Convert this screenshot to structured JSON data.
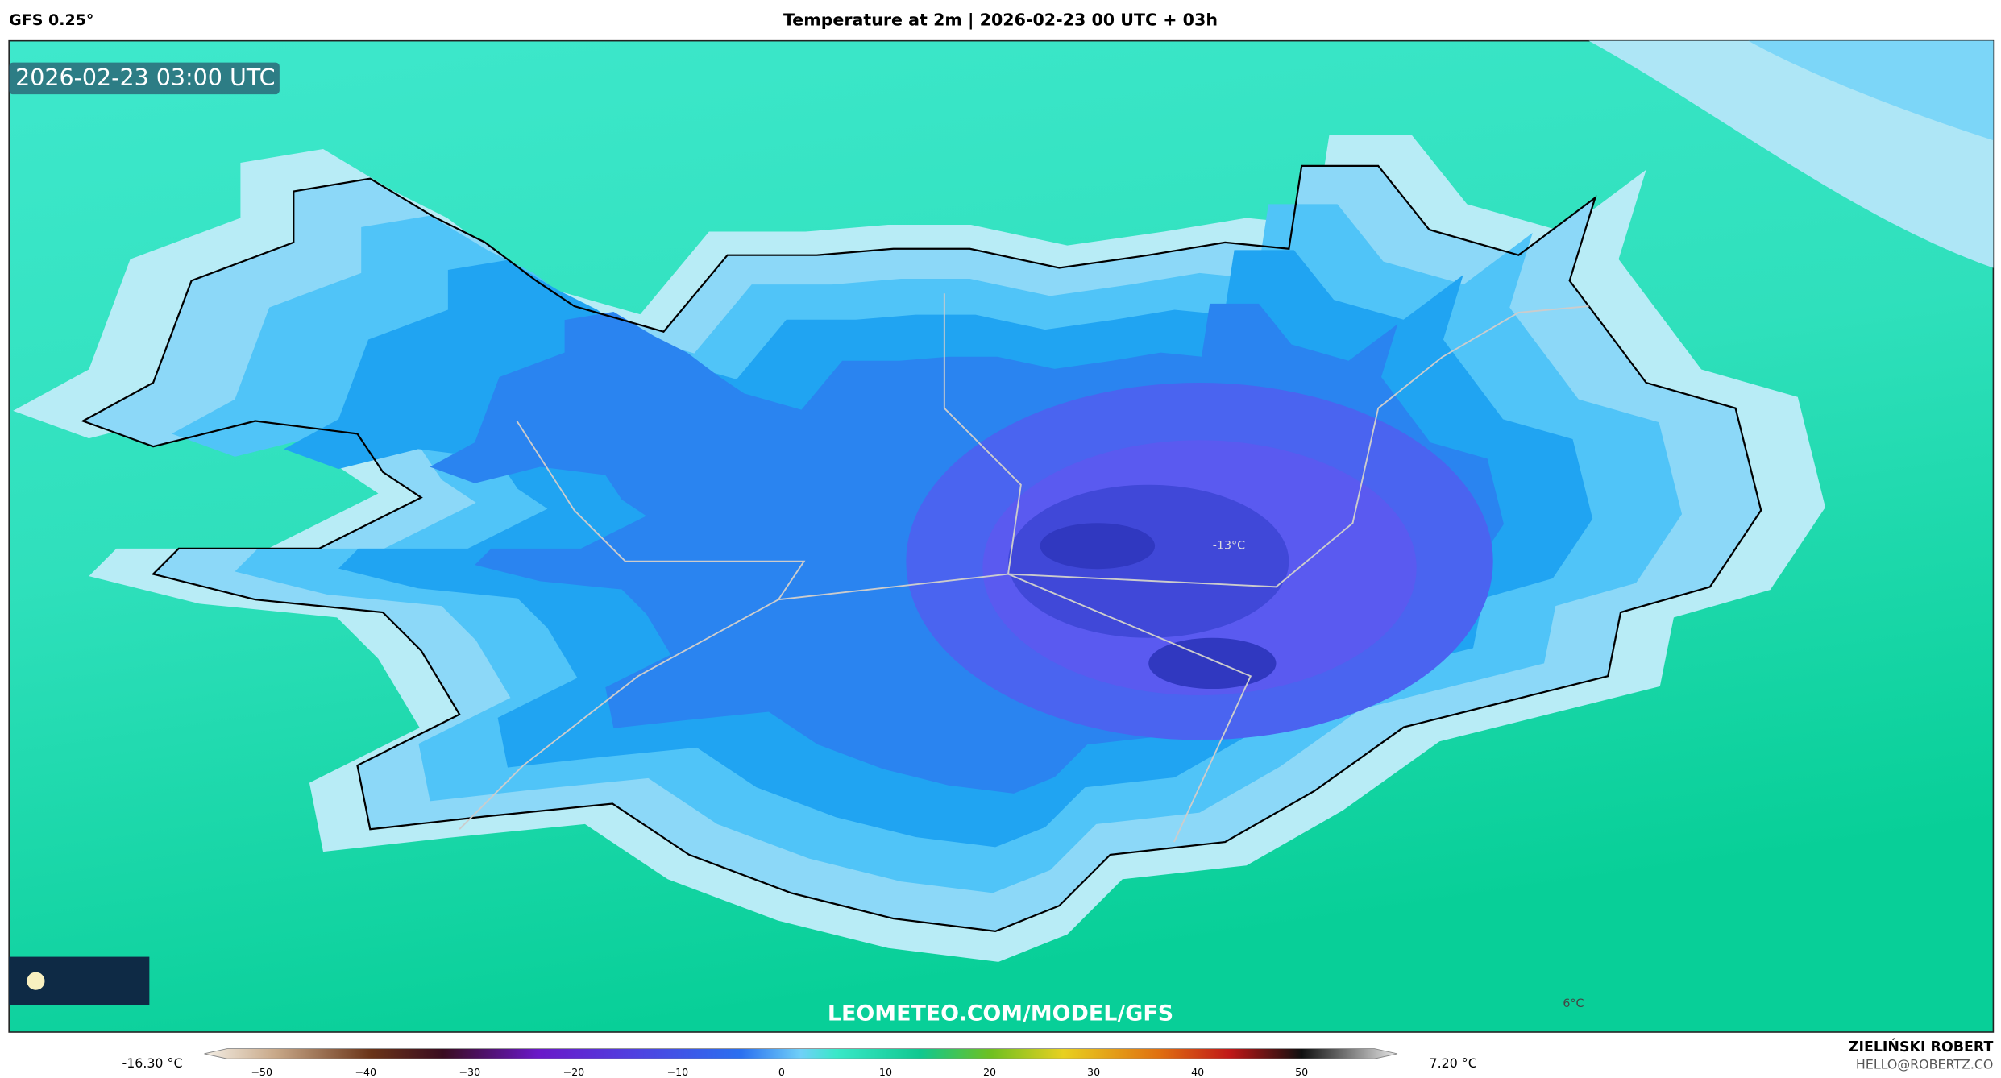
{
  "header": {
    "model": "GFS 0.25°",
    "title": "Temperature at 2m | 2026-02-23 00 UTC + 03h"
  },
  "map": {
    "timestamp": "2026-02-23 03:00 UTC",
    "labels": [
      "-13°C",
      "6°C"
    ],
    "watermark": "LEOMETEO.COM/MODEL/GFS"
  },
  "colorbar": {
    "min_label": "-16.30 °C",
    "max_label": "7.20 °C",
    "ticks": [
      "−50",
      "−40",
      "−30",
      "−20",
      "−10",
      "0",
      "10",
      "20",
      "30",
      "40",
      "50"
    ]
  },
  "footer": {
    "author": "ZIELIŃSKI ROBERT",
    "email": "HELLO@ROBERTZ.CO"
  }
}
